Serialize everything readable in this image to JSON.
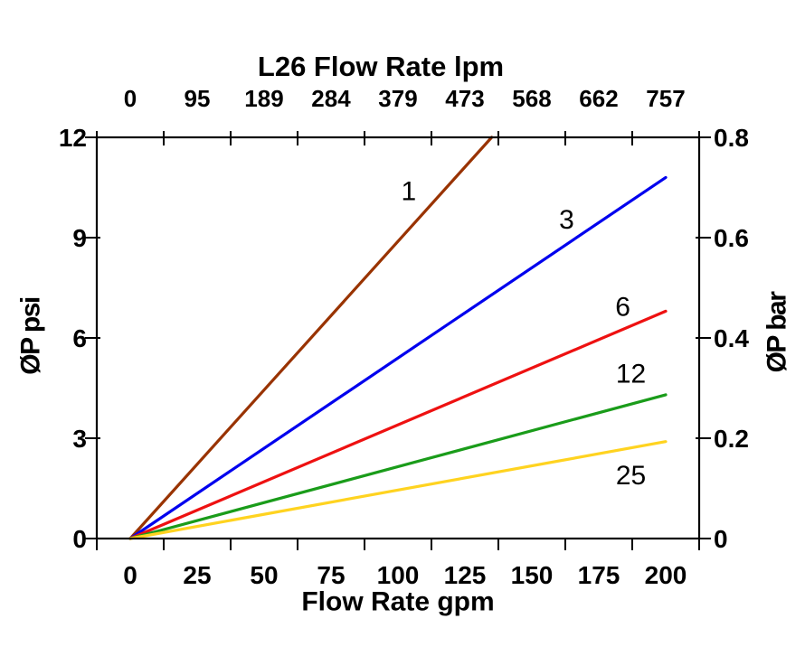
{
  "chart_data": {
    "type": "line",
    "title": "L26 Flow Rate lpm",
    "xlabel_bottom": "Flow Rate gpm",
    "ylabel_left": "ØP psi",
    "ylabel_right": "ØP bar",
    "grid": false,
    "legend": "inline-labels-on-lines",
    "x_gpm": {
      "min": 0,
      "max": 200,
      "ticks": [
        "0",
        "25",
        "50",
        "75",
        "100",
        "125",
        "150",
        "175",
        "200"
      ]
    },
    "x_lpm": {
      "min": 0,
      "max": 757,
      "ticks": [
        "0",
        "95",
        "189",
        "284",
        "379",
        "473",
        "568",
        "662",
        "757"
      ]
    },
    "y_psi": {
      "min": 0,
      "max": 12,
      "ticks": [
        "0",
        "3",
        "6",
        "9",
        "12"
      ]
    },
    "y_bar": {
      "min": 0,
      "max": 0.8,
      "ticks": [
        "0",
        "0.2",
        "0.4",
        "0.6",
        "0.8"
      ]
    },
    "axis_color": "#000000",
    "series": [
      {
        "name": "1",
        "color": "#993300",
        "points_gpm_psi": [
          [
            0,
            0
          ],
          [
            135,
            12
          ]
        ],
        "label_at_gpm_psi": [
          104,
          10.4
        ]
      },
      {
        "name": "3",
        "color": "#0000EE",
        "points_gpm_psi": [
          [
            0,
            0
          ],
          [
            200,
            10.8
          ]
        ],
        "label_at_gpm_psi": [
          163,
          9.55
        ]
      },
      {
        "name": "6",
        "color": "#EE1111",
        "points_gpm_psi": [
          [
            0,
            0
          ],
          [
            200,
            6.8
          ]
        ],
        "label_at_gpm_psi": [
          184,
          6.95
        ]
      },
      {
        "name": "12",
        "color": "#1A9C1A",
        "points_gpm_psi": [
          [
            0,
            0
          ],
          [
            200,
            4.3
          ]
        ],
        "label_at_gpm_psi": [
          187,
          4.95
        ]
      },
      {
        "name": "25",
        "color": "#FFD320",
        "points_gpm_psi": [
          [
            0,
            0
          ],
          [
            200,
            2.9
          ]
        ],
        "label_at_gpm_psi": [
          187,
          1.9
        ]
      }
    ]
  }
}
